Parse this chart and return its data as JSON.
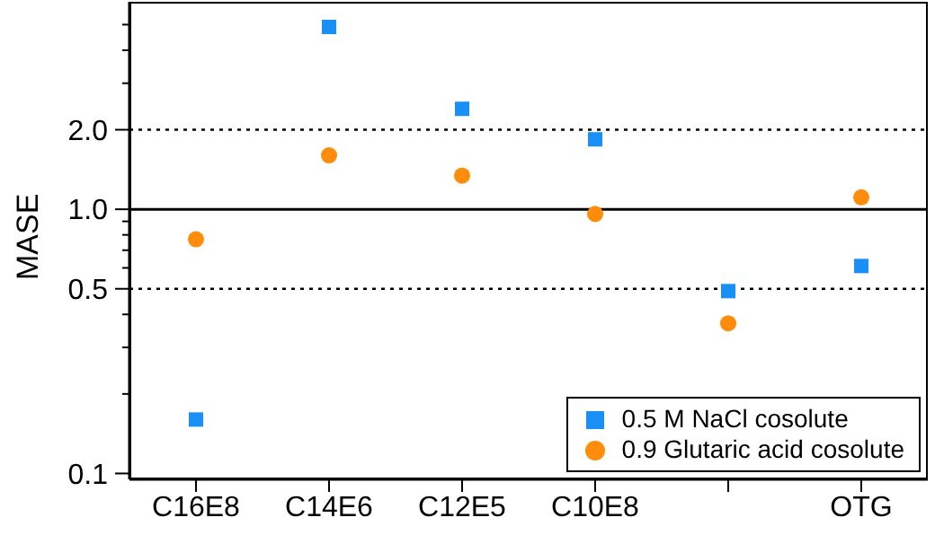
{
  "chart_data": {
    "type": "scatter",
    "ylabel": "MASE",
    "categories": [
      "C16E8",
      "C14E6",
      "C12E5",
      "C10E8",
      null,
      "OTG"
    ],
    "series": [
      {
        "name": "0.5 M NaCl cosolute",
        "color": "#1a8ff5",
        "marker": "square",
        "values": [
          0.16,
          4.9,
          2.4,
          1.84,
          0.49,
          0.61
        ]
      },
      {
        "name": "0.9 Glutaric acid cosolute",
        "color": "#ff8c0a",
        "marker": "circle",
        "values": [
          0.77,
          1.6,
          1.34,
          0.96,
          0.37,
          1.11
        ]
      }
    ],
    "log": true,
    "ylim": [
      0.095,
      6.1
    ],
    "yticks": [
      {
        "value": 0.1,
        "label": "0.1"
      },
      {
        "value": 0.2,
        "label": null
      },
      {
        "value": 0.3,
        "label": null
      },
      {
        "value": 0.4,
        "label": null
      },
      {
        "value": 0.5,
        "label": "0.5"
      },
      {
        "value": 0.6,
        "label": null
      },
      {
        "value": 0.7,
        "label": null
      },
      {
        "value": 0.8,
        "label": null
      },
      {
        "value": 0.9,
        "label": null
      },
      {
        "value": 1,
        "label": "1.0"
      },
      {
        "value": 2,
        "label": "2.0"
      },
      {
        "value": 3,
        "label": null
      },
      {
        "value": 4,
        "label": null
      },
      {
        "value": 5,
        "label": null
      }
    ],
    "ref_lines": [
      {
        "axis": "y",
        "value": 2,
        "color": "#000000",
        "line_style": "dotted"
      },
      {
        "axis": "y",
        "value": 1,
        "color": "#000000",
        "line_style": "solid"
      },
      {
        "axis": "y",
        "value": 0.5,
        "color": "#000000",
        "line_style": "dotted"
      }
    ],
    "grid": false,
    "legend": "bottom right"
  }
}
